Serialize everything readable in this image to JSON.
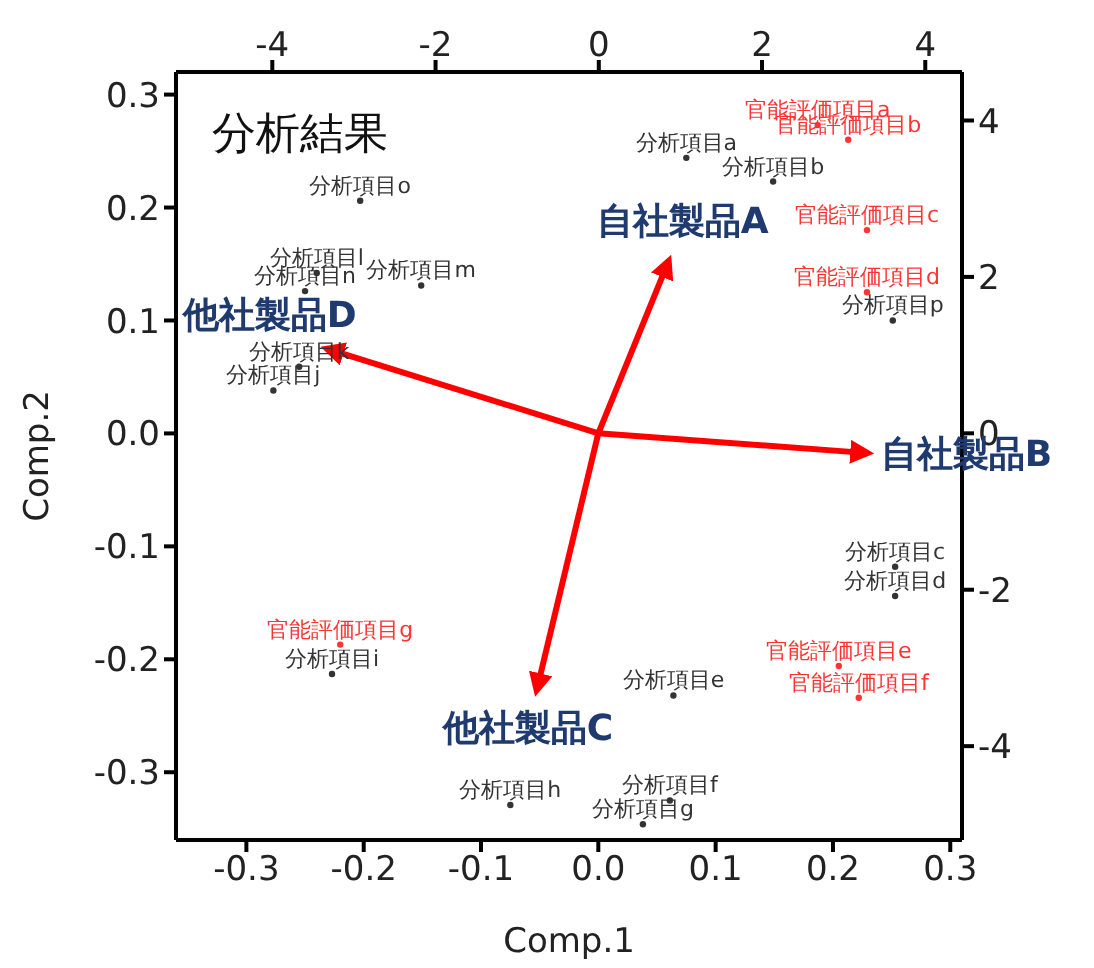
{
  "chart_data": {
    "type": "scatter",
    "title": "分析結果",
    "xlabel": "Comp.1",
    "ylabel": "Comp.2",
    "xlim": [
      -0.36,
      0.31
    ],
    "ylim": [
      -0.36,
      0.32
    ],
    "xticks": [
      -0.3,
      -0.2,
      -0.1,
      {
        "value": 0,
        "label": "0.0"
      },
      0.1,
      0.2,
      0.3
    ],
    "yticks": [
      -0.3,
      -0.2,
      -0.1,
      {
        "value": 0,
        "label": "0.0"
      },
      0.1,
      0.2,
      0.3
    ],
    "x2lim": [
      -5.18,
      4.45
    ],
    "x2ticks": [
      -4,
      -2,
      0,
      2,
      4
    ],
    "y2lim": [
      -5.2,
      4.62
    ],
    "y2ticks": [
      -4,
      -2,
      0,
      2,
      4
    ],
    "marker": "circle",
    "line_style": "solid",
    "series": [
      {
        "color": "#333333",
        "x": [
          0.075,
          0.149,
          0.253,
          0.253,
          0.064,
          0.061,
          0.038,
          -0.075,
          -0.227,
          -0.277,
          -0.255,
          -0.24,
          -0.151,
          -0.25,
          -0.203,
          0.251
        ],
        "values": [
          0.244,
          0.223,
          -0.118,
          -0.144,
          -0.232,
          -0.325,
          -0.346,
          -0.329,
          -0.213,
          0.038,
          0.059,
          0.142,
          0.131,
          0.126,
          0.206,
          0.1
        ],
        "value_labels": [
          "分析項目a",
          "分析項目b",
          "分析項目c",
          "分析項目d",
          "分析項目e",
          "分析項目f",
          "分析項目g",
          "分析項目h",
          "分析項目i",
          "分析項目j",
          "分析項目k",
          "分析項目l",
          "分析項目m",
          "分析項目n",
          "分析項目o",
          "分析項目p"
        ]
      },
      {
        "color": "#ff3333",
        "x": [
          0.187,
          0.213,
          0.229,
          0.229,
          0.205,
          0.222,
          -0.22
        ],
        "values": [
          0.273,
          0.26,
          0.18,
          0.125,
          -0.206,
          -0.234,
          -0.187
        ],
        "value_labels": [
          "官能評価項目a",
          "官能評価項目b",
          "官能評価項目c",
          "官能評価項目d",
          "官能評価項目e",
          "官能評価項目f",
          "官能評価項目g"
        ]
      },
      {
        "type": "line",
        "marker": "none",
        "name": "自社製品A",
        "color": "#ff0000",
        "axis": "y2",
        "x": [
          0,
          0.059
        ],
        "values": [
          0,
          2.17
        ]
      },
      {
        "type": "line",
        "marker": "none",
        "name": "自社製品B",
        "color": "#ff0000",
        "axis": "y2",
        "x": [
          0,
          0.227
        ],
        "values": [
          0,
          -0.25
        ]
      },
      {
        "type": "line",
        "marker": "none",
        "name": "他社製品C",
        "color": "#ff0000",
        "axis": "y2",
        "x": [
          0,
          -0.052
        ],
        "values": [
          0,
          -3.25
        ]
      },
      {
        "type": "line",
        "marker": "none",
        "name": "他社製品D",
        "color": "#ff0000",
        "axis": "y2",
        "x": [
          0,
          -0.229
        ],
        "values": [
          0,
          1.07
        ]
      }
    ]
  }
}
